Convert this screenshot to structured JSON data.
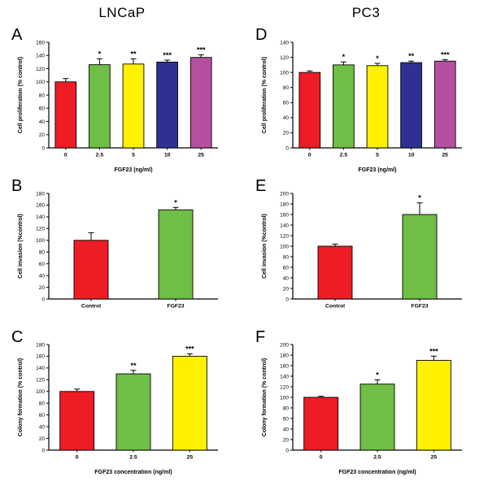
{
  "figure": {
    "column_titles": [
      "LNCaP",
      "PC3"
    ]
  },
  "colors": {
    "red": "#EE1C25",
    "green": "#6FBE45",
    "yellow": "#FFF100",
    "blue": "#2E3192",
    "purple": "#B4509F"
  },
  "chart_data": [
    {
      "panel": "A",
      "type": "bar",
      "title": "",
      "ylabel": "Cell proliferation (% control)",
      "xlabel": "FGF23 (ng/ml)",
      "categories": [
        "0",
        "2.5",
        "5",
        "10",
        "25"
      ],
      "values": [
        100,
        126,
        127,
        130,
        137
      ],
      "errors": [
        5,
        9,
        8,
        3,
        4
      ],
      "significance": [
        "",
        "*",
        "**",
        "***",
        "***"
      ],
      "bar_colors": [
        "red",
        "green",
        "yellow",
        "blue",
        "purple"
      ],
      "ylim": [
        0,
        160
      ],
      "ytick_interval": 20,
      "grid": false,
      "legend": "none"
    },
    {
      "panel": "B",
      "type": "bar",
      "title": "",
      "ylabel": "Cell invasion (%control)",
      "xlabel": "",
      "categories": [
        "Control",
        "FGF23"
      ],
      "values": [
        100,
        152
      ],
      "errors": [
        13,
        4
      ],
      "significance": [
        "",
        "*"
      ],
      "bar_colors": [
        "red",
        "green"
      ],
      "ylim": [
        0,
        180
      ],
      "ytick_interval": 20,
      "grid": false,
      "legend": "none"
    },
    {
      "panel": "C",
      "type": "bar",
      "title": "",
      "ylabel": "Colony formation (% control)",
      "xlabel": "FGF23 concentration (ng/ml)",
      "categories": [
        "0",
        "2.5",
        "25"
      ],
      "values": [
        100,
        130,
        160
      ],
      "errors": [
        4,
        6,
        4
      ],
      "significance": [
        "",
        "**",
        "***"
      ],
      "bar_colors": [
        "red",
        "green",
        "yellow"
      ],
      "ylim": [
        0,
        180
      ],
      "ytick_interval": 20,
      "grid": false,
      "legend": "none"
    },
    {
      "panel": "D",
      "type": "bar",
      "title": "",
      "ylabel": "Cell proliferation (% control)",
      "xlabel": "FGF23 (ng/ml)",
      "categories": [
        "0",
        "2.5",
        "5",
        "10",
        "25"
      ],
      "values": [
        100,
        110,
        109,
        113,
        115
      ],
      "errors": [
        2,
        4,
        3,
        2,
        2
      ],
      "significance": [
        "",
        "*",
        "*",
        "**",
        "***"
      ],
      "bar_colors": [
        "red",
        "green",
        "yellow",
        "blue",
        "purple"
      ],
      "ylim": [
        0,
        140
      ],
      "ytick_interval": 20,
      "grid": false,
      "legend": "none"
    },
    {
      "panel": "E",
      "type": "bar",
      "title": "",
      "ylabel": "Cell invasion (%control)",
      "xlabel": "",
      "categories": [
        "Control",
        "FGF23"
      ],
      "values": [
        100,
        160
      ],
      "errors": [
        4,
        22
      ],
      "significance": [
        "",
        "*"
      ],
      "bar_colors": [
        "red",
        "green"
      ],
      "ylim": [
        0,
        200
      ],
      "ytick_interval": 20,
      "grid": false,
      "legend": "none"
    },
    {
      "panel": "F",
      "type": "bar",
      "title": "",
      "ylabel": "Colony formation (% control)",
      "xlabel": "FGF23 concentration (ng/ml)",
      "categories": [
        "0",
        "2.5",
        "25"
      ],
      "values": [
        100,
        125,
        170
      ],
      "errors": [
        2,
        8,
        8
      ],
      "significance": [
        "",
        "*",
        "***"
      ],
      "bar_colors": [
        "red",
        "green",
        "yellow"
      ],
      "ylim": [
        0,
        200
      ],
      "ytick_interval": 20,
      "grid": false,
      "legend": "none"
    }
  ]
}
